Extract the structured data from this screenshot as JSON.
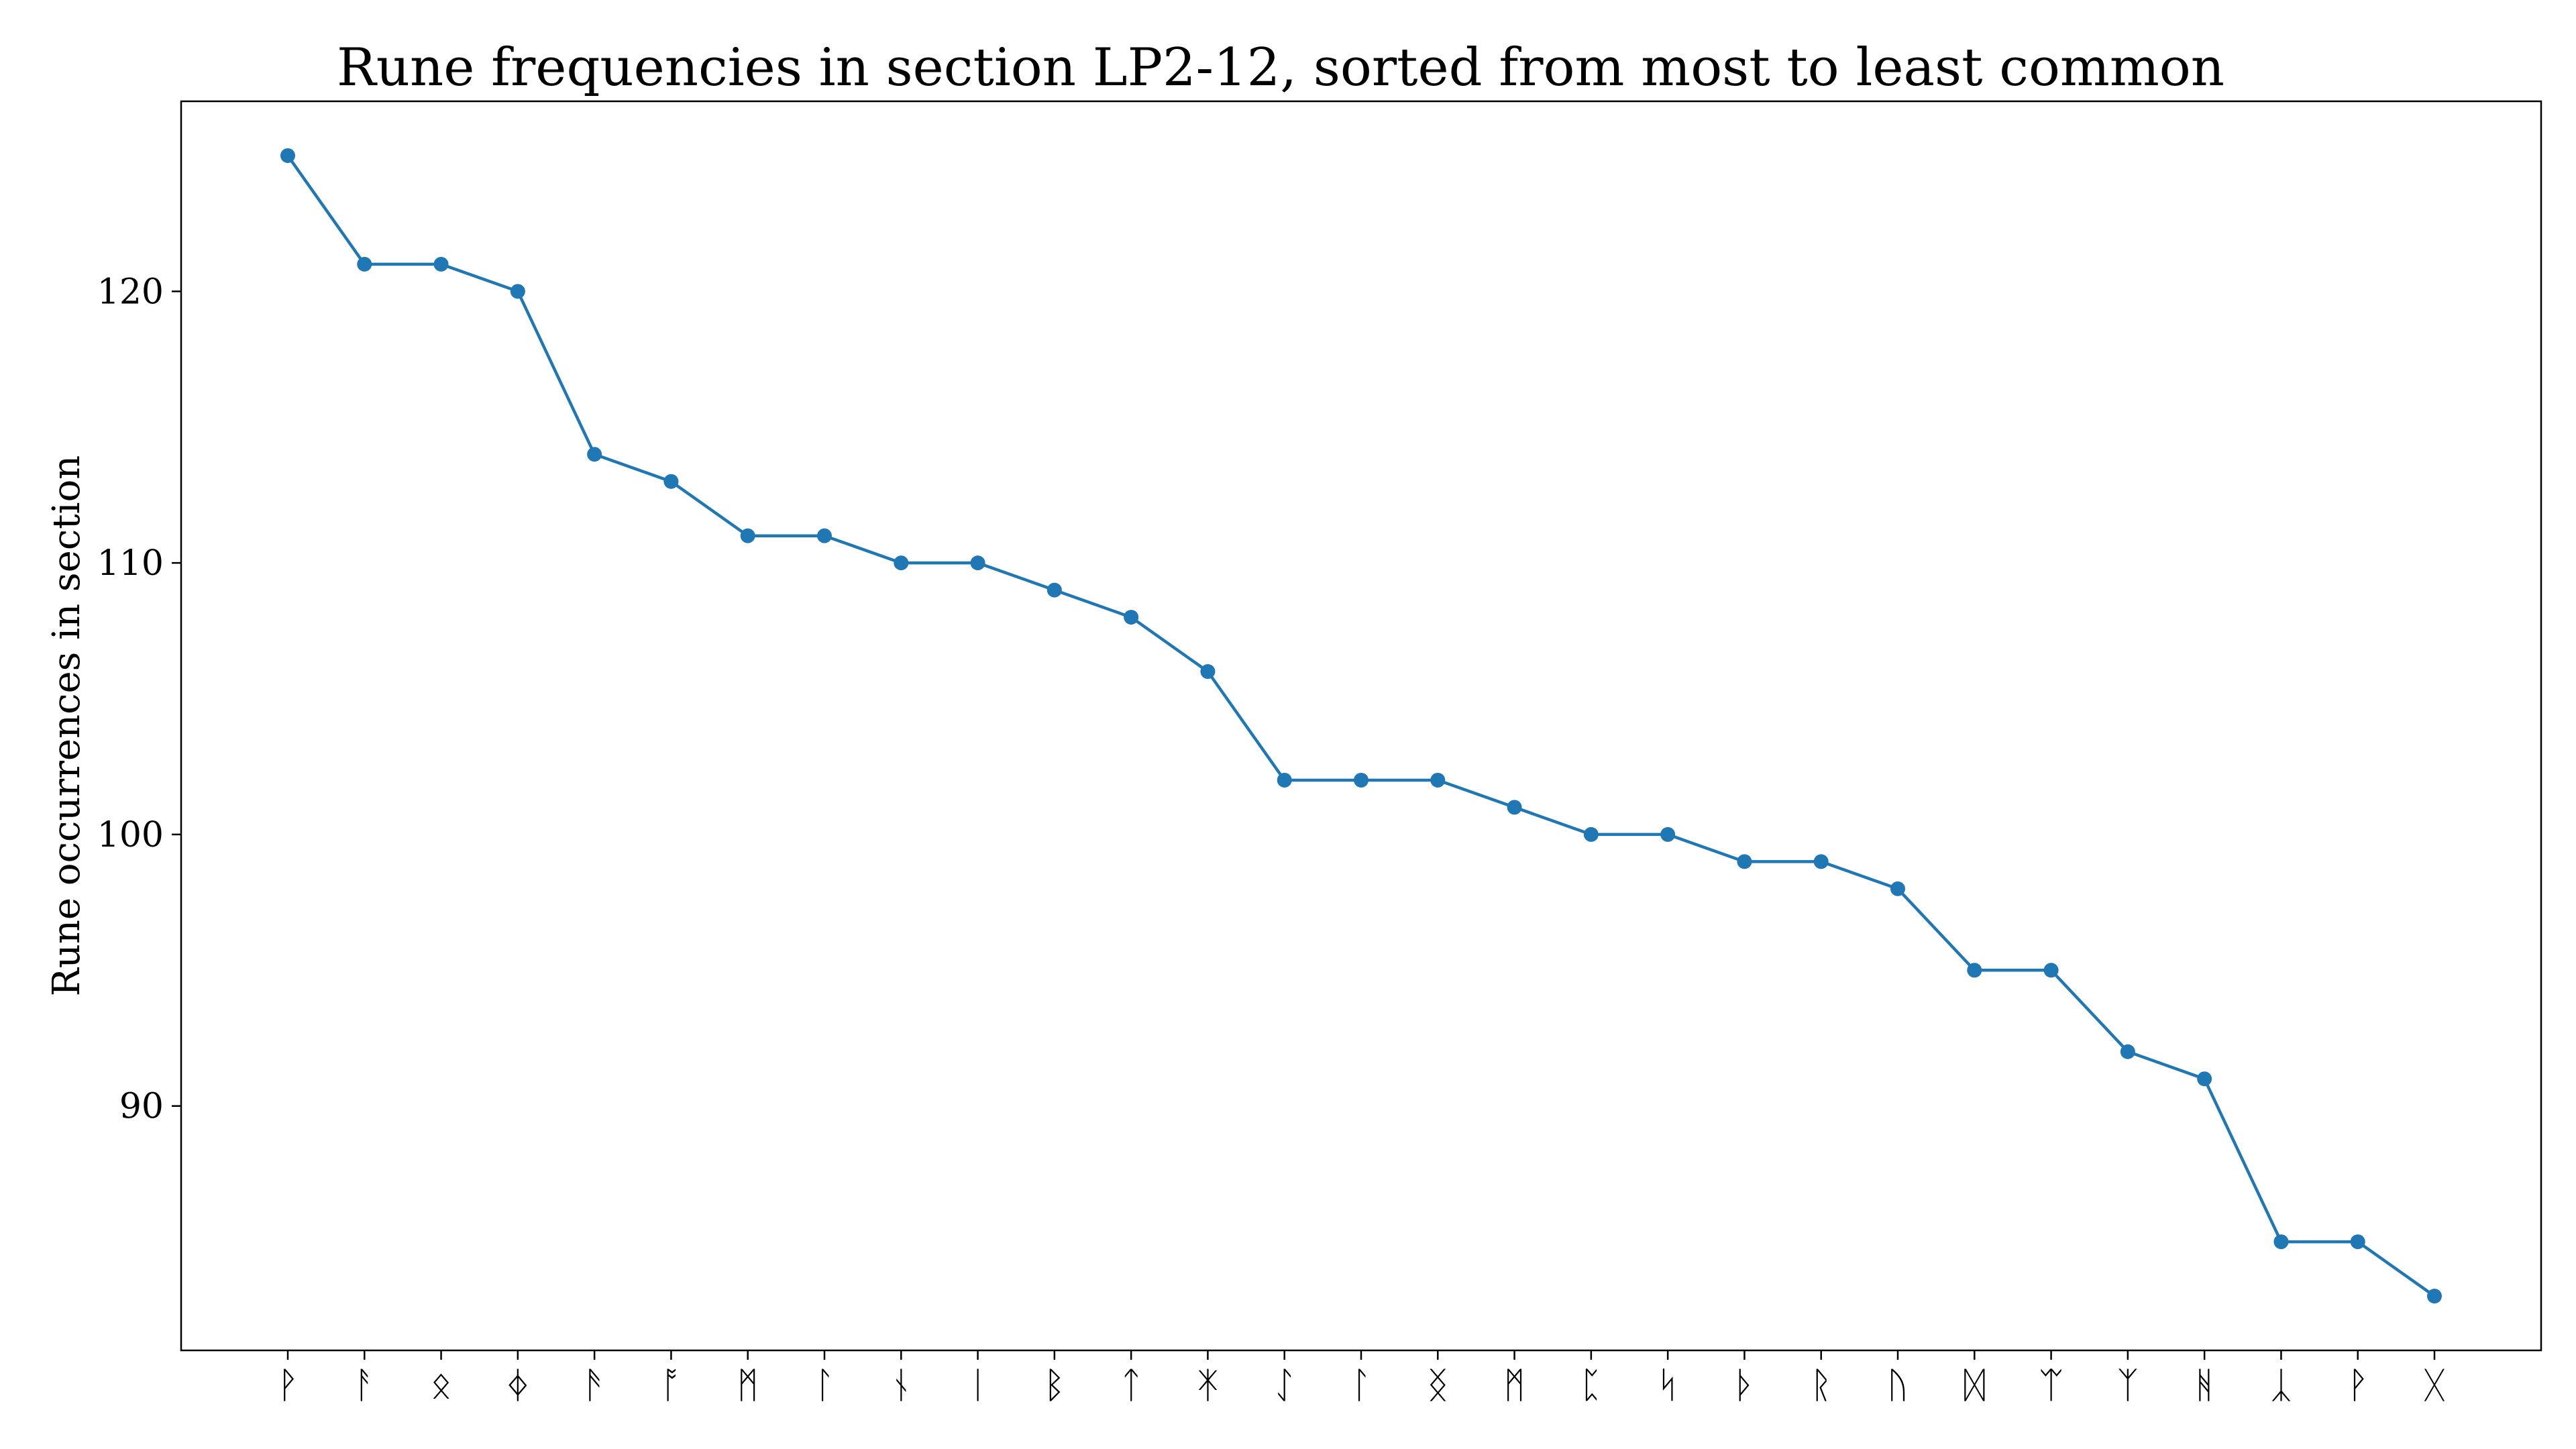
{
  "chart_data": {
    "type": "line",
    "title": "Rune frequencies in section LP2-12, sorted from most to least common",
    "xlabel": "",
    "ylabel": "Rune occurrences in section",
    "categories": [
      "ᚹ",
      "ᚨ",
      "ᛟ",
      "ᛄ",
      "ᚫ",
      "ᚩ",
      "ᛗ",
      "ᛚ",
      "ᚾ",
      "ᛁ",
      "ᛒ",
      "ᛏ",
      "ᛡ",
      "ᛇ",
      "ᛚ",
      "ᛝ",
      "ᛗ",
      "ᛈ",
      "ᛋ",
      "ᚦ",
      "ᚱ",
      "ᚢ",
      "ᛞ",
      "ᛠ",
      "ᛉ",
      "ᚻ",
      "ᛣ",
      "ᚹ",
      "ᚷ"
    ],
    "series": [
      {
        "values": [
          125,
          121,
          121,
          120,
          114,
          113,
          111,
          111,
          110,
          110,
          109,
          108,
          106,
          102,
          102,
          102,
          101,
          100,
          100,
          99,
          99,
          98,
          95,
          95,
          92,
          91,
          85,
          85,
          83
        ],
        "color": "#1f77b4"
      }
    ],
    "ylim": [
      81,
      127
    ],
    "yticks": [
      90,
      100,
      110,
      120
    ],
    "grid": false,
    "legend": "none"
  }
}
